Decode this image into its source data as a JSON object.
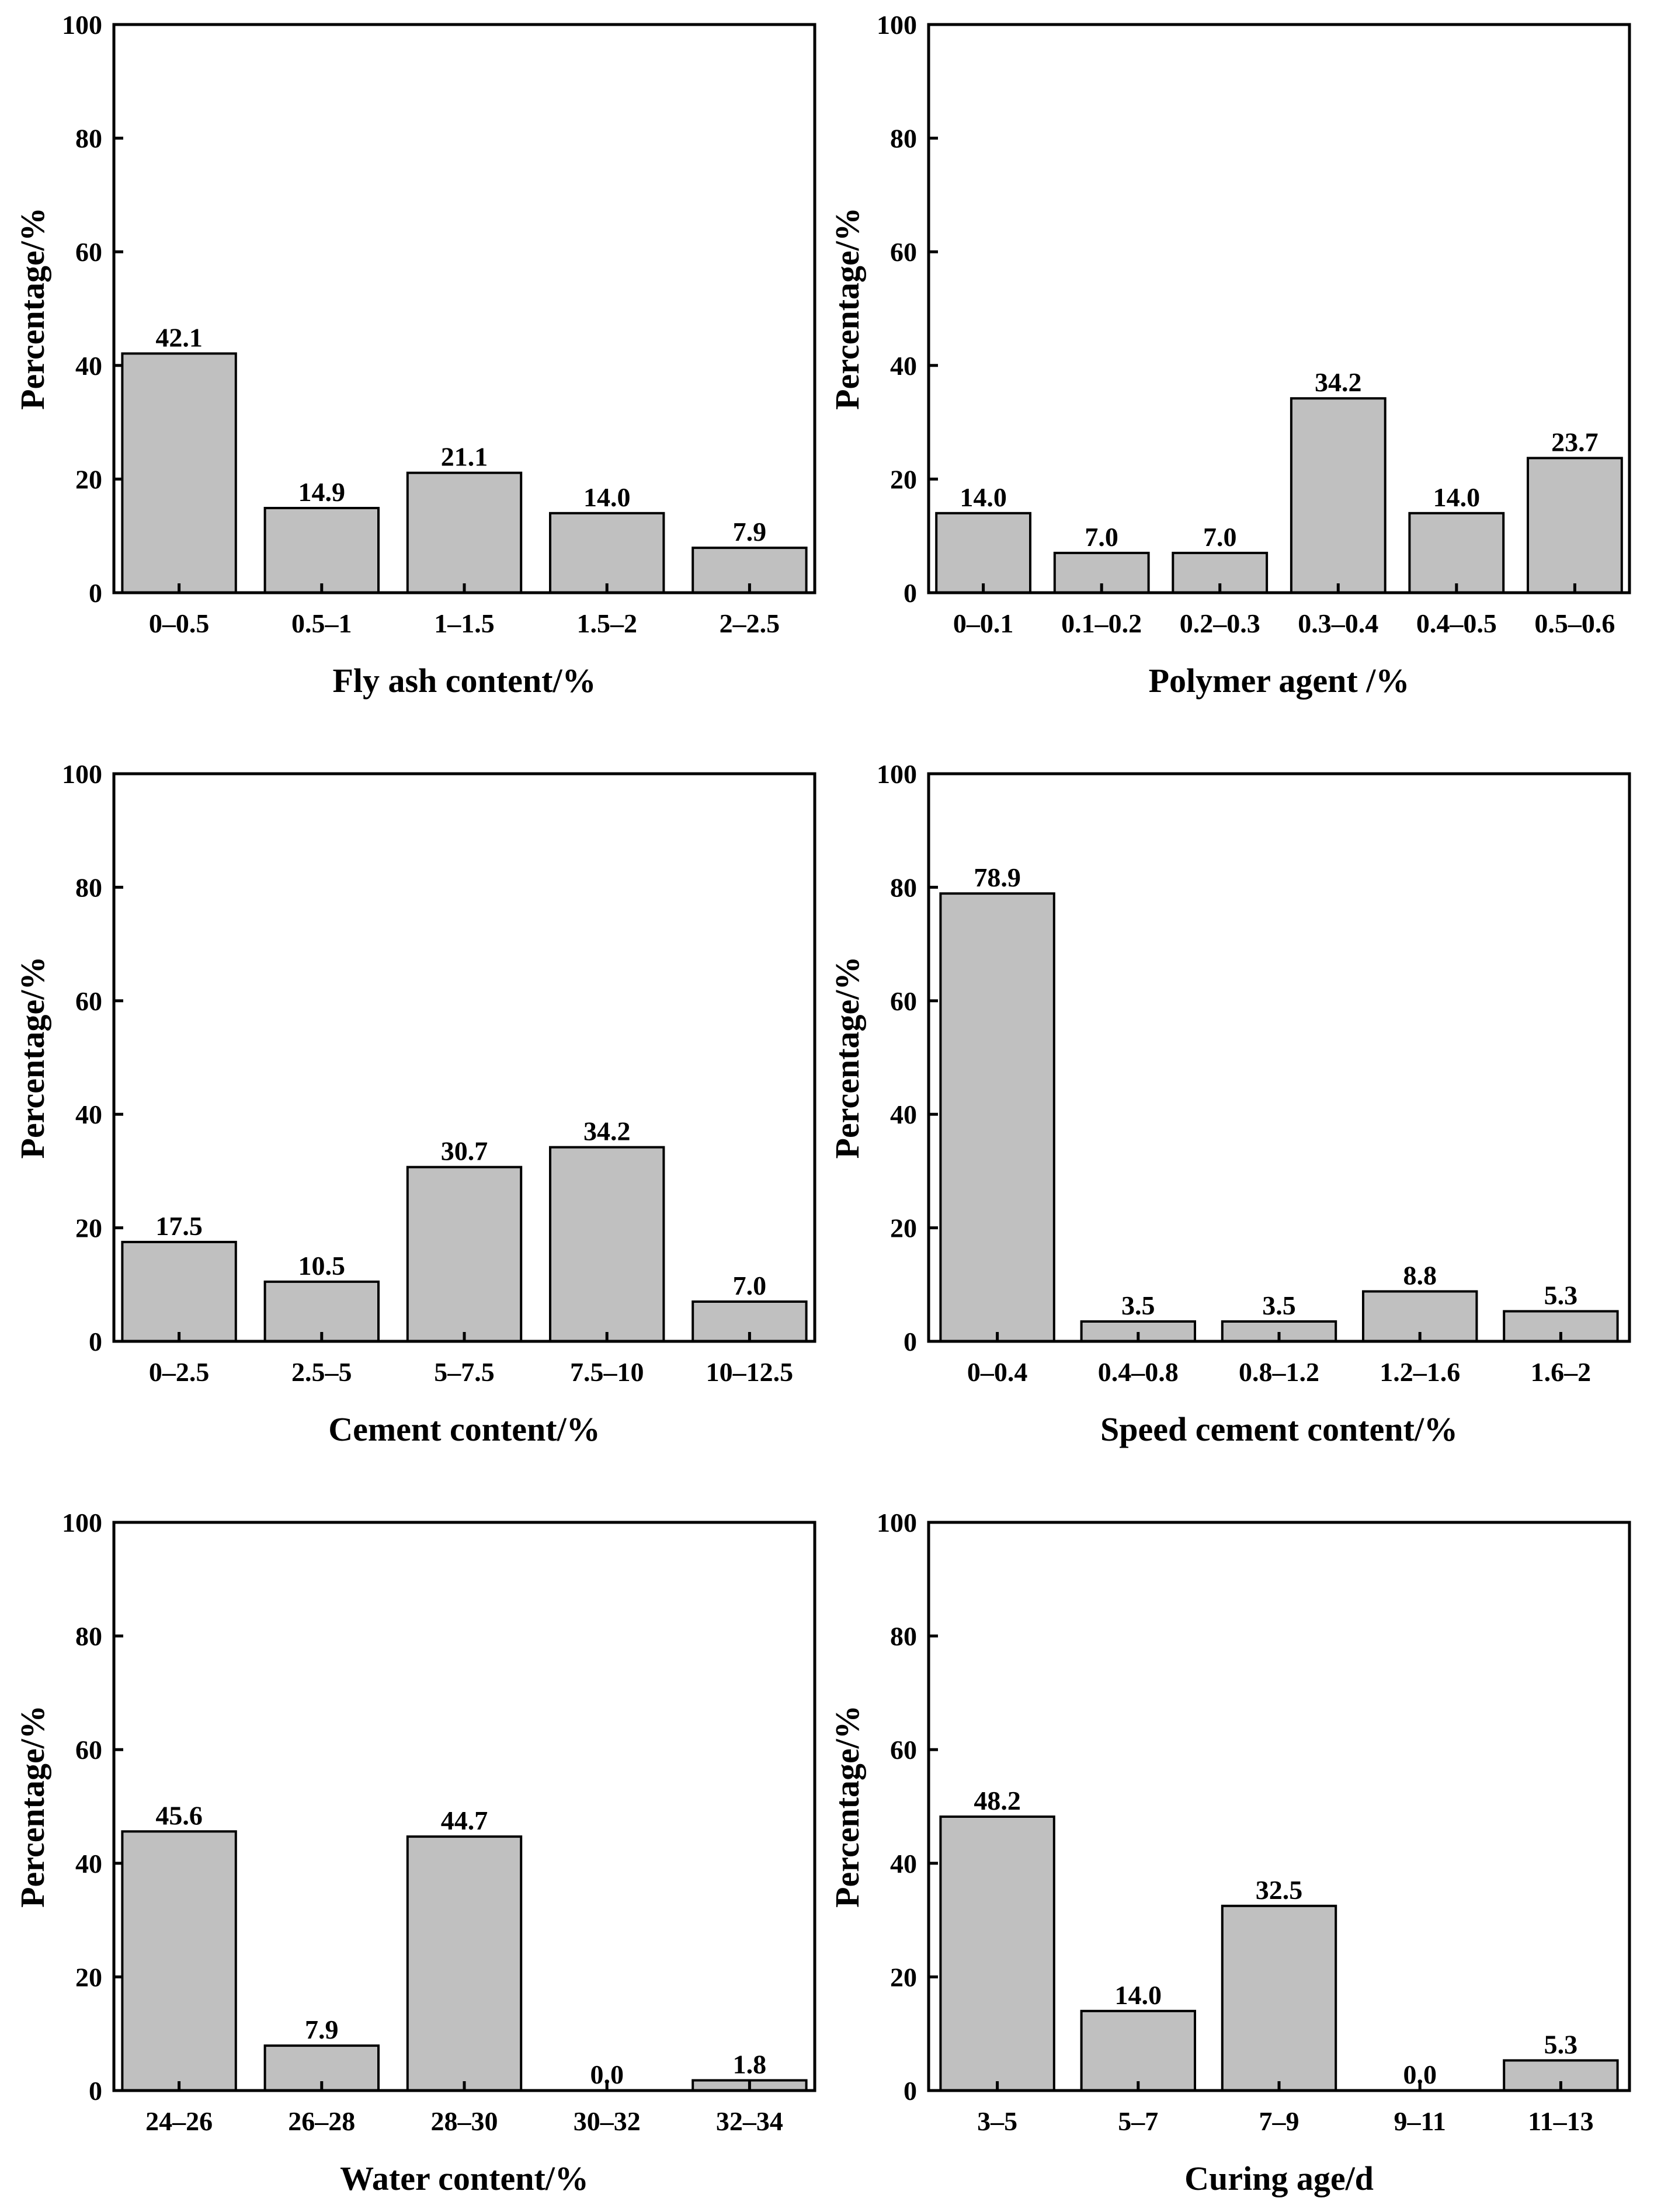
{
  "chart_data": [
    {
      "type": "bar",
      "categories": [
        "0–0.5",
        "0.5–1",
        "1–1.5",
        "1.5–2",
        "2–2.5"
      ],
      "values": [
        42.1,
        14.9,
        21.1,
        14.0,
        7.9
      ],
      "value_labels": [
        "42.1",
        "14.9",
        "21.1",
        "14.0",
        "7.9"
      ],
      "xlabel": "Fly ash content/%",
      "ylabel": "Percentage/%",
      "ylim": [
        0,
        100
      ],
      "yticks": [
        "0",
        "20",
        "40",
        "60",
        "80",
        "100"
      ],
      "grid": false,
      "legend": "none"
    },
    {
      "type": "bar",
      "categories": [
        "0–0.1",
        "0.1–0.2",
        "0.2–0.3",
        "0.3–0.4",
        "0.4–0.5",
        "0.5–0.6"
      ],
      "values": [
        14.0,
        7.0,
        7.0,
        34.2,
        14.0,
        23.7
      ],
      "value_labels": [
        "14.0",
        "7.0",
        "7.0",
        "34.2",
        "14.0",
        "23.7"
      ],
      "xlabel": "Polymer agent /%",
      "ylabel": "Percentage/%",
      "ylim": [
        0,
        100
      ],
      "yticks": [
        "0",
        "20",
        "40",
        "60",
        "80",
        "100"
      ],
      "grid": false,
      "legend": "none"
    },
    {
      "type": "bar",
      "categories": [
        "0–2.5",
        "2.5–5",
        "5–7.5",
        "7.5–10",
        "10–12.5"
      ],
      "values": [
        17.5,
        10.5,
        30.7,
        34.2,
        7.0
      ],
      "value_labels": [
        "17.5",
        "10.5",
        "30.7",
        "34.2",
        "7.0"
      ],
      "xlabel": "Cement content/%",
      "ylabel": "Percentage/%",
      "ylim": [
        0,
        100
      ],
      "yticks": [
        "0",
        "20",
        "40",
        "60",
        "80",
        "100"
      ],
      "grid": false,
      "legend": "none"
    },
    {
      "type": "bar",
      "categories": [
        "0–0.4",
        "0.4–0.8",
        "0.8–1.2",
        "1.2–1.6",
        "1.6–2"
      ],
      "values": [
        78.9,
        3.5,
        3.5,
        8.8,
        5.3
      ],
      "value_labels": [
        "78.9",
        "3.5",
        "3.5",
        "8.8",
        "5.3"
      ],
      "xlabel": "Speed cement content/%",
      "ylabel": "Percentage/%",
      "ylim": [
        0,
        100
      ],
      "yticks": [
        "0",
        "20",
        "40",
        "60",
        "80",
        "100"
      ],
      "grid": false,
      "legend": "none"
    },
    {
      "type": "bar",
      "categories": [
        "24–26",
        "26–28",
        "28–30",
        "30–32",
        "32–34"
      ],
      "values": [
        45.6,
        7.9,
        44.7,
        0.0,
        1.8
      ],
      "value_labels": [
        "45.6",
        "7.9",
        "44.7",
        "0.0",
        "1.8"
      ],
      "xlabel": "Water content/%",
      "ylabel": "Percentage/%",
      "ylim": [
        0,
        100
      ],
      "yticks": [
        "0",
        "20",
        "40",
        "60",
        "80",
        "100"
      ],
      "grid": false,
      "legend": "none"
    },
    {
      "type": "bar",
      "categories": [
        "3–5",
        "5–7",
        "7–9",
        "9–11",
        "11–13"
      ],
      "values": [
        48.2,
        14.0,
        32.5,
        0.0,
        5.3
      ],
      "value_labels": [
        "48.2",
        "14.0",
        "32.5",
        "0.0",
        "5.3"
      ],
      "xlabel": "Curing age/d",
      "ylabel": "Percentage/%",
      "ylim": [
        0,
        100
      ],
      "yticks": [
        "0",
        "20",
        "40",
        "60",
        "80",
        "100"
      ],
      "grid": false,
      "legend": "none"
    }
  ],
  "colors": {
    "bar_fill": "#c0c0c0",
    "bar_stroke": "#000000",
    "axis": "#000000",
    "background": "#ffffff"
  }
}
